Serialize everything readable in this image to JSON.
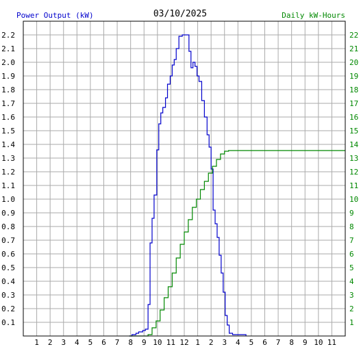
{
  "chart_data": {
    "type": "line",
    "title": "03/10/2025",
    "left_axis_label": "Power Output (kW)",
    "right_axis_label": "Daily kW-Hours",
    "x_ticks": [
      "1",
      "2",
      "3",
      "4",
      "5",
      "6",
      "7",
      "8",
      "9",
      "10",
      "11",
      "12",
      "1",
      "2",
      "3",
      "4",
      "5",
      "6",
      "7",
      "8",
      "9",
      "10",
      "11"
    ],
    "left_ticks": [
      "0.1",
      "0.2",
      "0.3",
      "0.4",
      "0.5",
      "0.6",
      "0.7",
      "0.8",
      "0.9",
      "1.0",
      "1.1",
      "1.2",
      "1.3",
      "1.4",
      "1.5",
      "1.6",
      "1.7",
      "1.8",
      "1.9",
      "2.0",
      "2.1",
      "2.2"
    ],
    "right_ticks": [
      "1",
      "2",
      "3",
      "4",
      "5",
      "6",
      "7",
      "8",
      "9",
      "10",
      "11",
      "12",
      "13",
      "14",
      "15",
      "16",
      "17",
      "18",
      "19",
      "20",
      "21",
      "22"
    ],
    "xlim_hours": [
      0,
      24
    ],
    "ylim_kw": [
      0,
      2.3
    ],
    "ylim_kwh": [
      0,
      23
    ],
    "grid": true,
    "colors": {
      "power": "#0000cc",
      "energy": "#008800",
      "grid": "#aaaaaa",
      "axis_text": "#000000"
    },
    "series": [
      {
        "name": "Power Output (kW)",
        "color": "#0000cc",
        "points": [
          [
            7.9,
            0
          ],
          [
            8.1,
            0.01
          ],
          [
            8.4,
            0.02
          ],
          [
            8.6,
            0.03
          ],
          [
            8.9,
            0.04
          ],
          [
            9.1,
            0.05
          ],
          [
            9.3,
            0.23
          ],
          [
            9.45,
            0.68
          ],
          [
            9.6,
            0.86
          ],
          [
            9.75,
            1.03
          ],
          [
            9.95,
            1.36
          ],
          [
            10.1,
            1.55
          ],
          [
            10.25,
            1.63
          ],
          [
            10.4,
            1.67
          ],
          [
            10.6,
            1.74
          ],
          [
            10.75,
            1.84
          ],
          [
            10.95,
            1.9
          ],
          [
            11.1,
            1.98
          ],
          [
            11.25,
            2.02
          ],
          [
            11.4,
            2.1
          ],
          [
            11.6,
            2.19
          ],
          [
            11.85,
            2.2
          ],
          [
            12.05,
            2.2
          ],
          [
            12.25,
            2.2
          ],
          [
            12.35,
            2.08
          ],
          [
            12.5,
            1.96
          ],
          [
            12.65,
            2.0
          ],
          [
            12.8,
            1.97
          ],
          [
            12.95,
            1.9
          ],
          [
            13.1,
            1.86
          ],
          [
            13.3,
            1.72
          ],
          [
            13.5,
            1.6
          ],
          [
            13.7,
            1.47
          ],
          [
            13.85,
            1.38
          ],
          [
            14.0,
            1.22
          ],
          [
            14.15,
            0.92
          ],
          [
            14.3,
            0.82
          ],
          [
            14.45,
            0.72
          ],
          [
            14.6,
            0.59
          ],
          [
            14.75,
            0.46
          ],
          [
            14.9,
            0.32
          ],
          [
            15.05,
            0.15
          ],
          [
            15.2,
            0.08
          ],
          [
            15.35,
            0.02
          ],
          [
            15.6,
            0.01
          ],
          [
            16.5,
            0.01
          ],
          [
            16.6,
            0
          ]
        ]
      },
      {
        "name": "Daily kW-Hours",
        "color": "#008800",
        "points": [
          [
            7.9,
            0
          ],
          [
            9.0,
            0
          ],
          [
            9.3,
            0.1
          ],
          [
            9.6,
            0.6
          ],
          [
            9.9,
            1.1
          ],
          [
            10.2,
            1.9
          ],
          [
            10.5,
            2.8
          ],
          [
            10.8,
            3.6
          ],
          [
            11.1,
            4.6
          ],
          [
            11.4,
            5.7
          ],
          [
            11.7,
            6.7
          ],
          [
            12.0,
            7.6
          ],
          [
            12.3,
            8.5
          ],
          [
            12.6,
            9.4
          ],
          [
            12.9,
            10.0
          ],
          [
            13.2,
            10.7
          ],
          [
            13.5,
            11.3
          ],
          [
            13.8,
            11.9
          ],
          [
            14.1,
            12.4
          ],
          [
            14.4,
            12.9
          ],
          [
            14.7,
            13.3
          ],
          [
            15.0,
            13.5
          ],
          [
            15.3,
            13.55
          ],
          [
            16.0,
            13.55
          ],
          [
            24,
            13.55
          ]
        ]
      }
    ]
  }
}
